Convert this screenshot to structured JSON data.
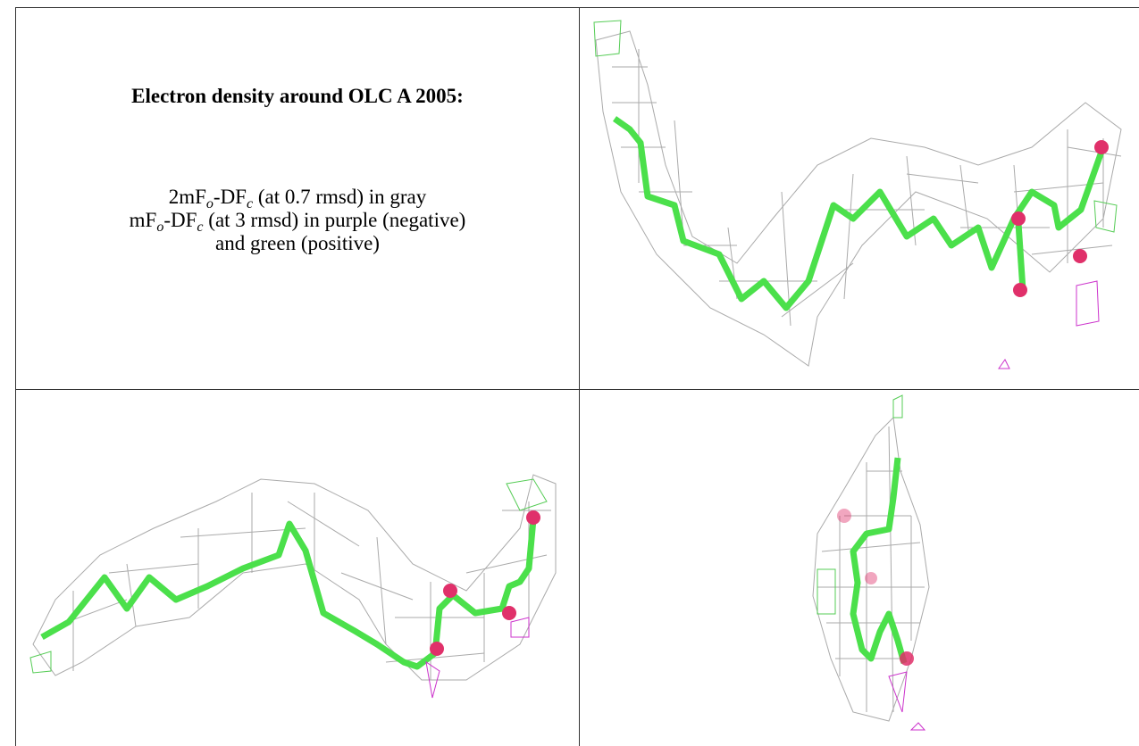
{
  "caption": {
    "title": "Electron density around OLC A 2005:",
    "lines": [
      [
        {
          "text": "2mF"
        },
        {
          "sub": "o"
        },
        {
          "text": "-DF"
        },
        {
          "sub": "c"
        },
        {
          "text": " (at 0.7 rmsd) in gray"
        }
      ],
      [
        {
          "text": "mF"
        },
        {
          "sub": "o"
        },
        {
          "text": "-DF"
        },
        {
          "sub": "c"
        },
        {
          "text": " (at 3 rmsd) in purple (negative)"
        }
      ],
      [
        {
          "text": "and green (positive)"
        }
      ]
    ]
  }
}
